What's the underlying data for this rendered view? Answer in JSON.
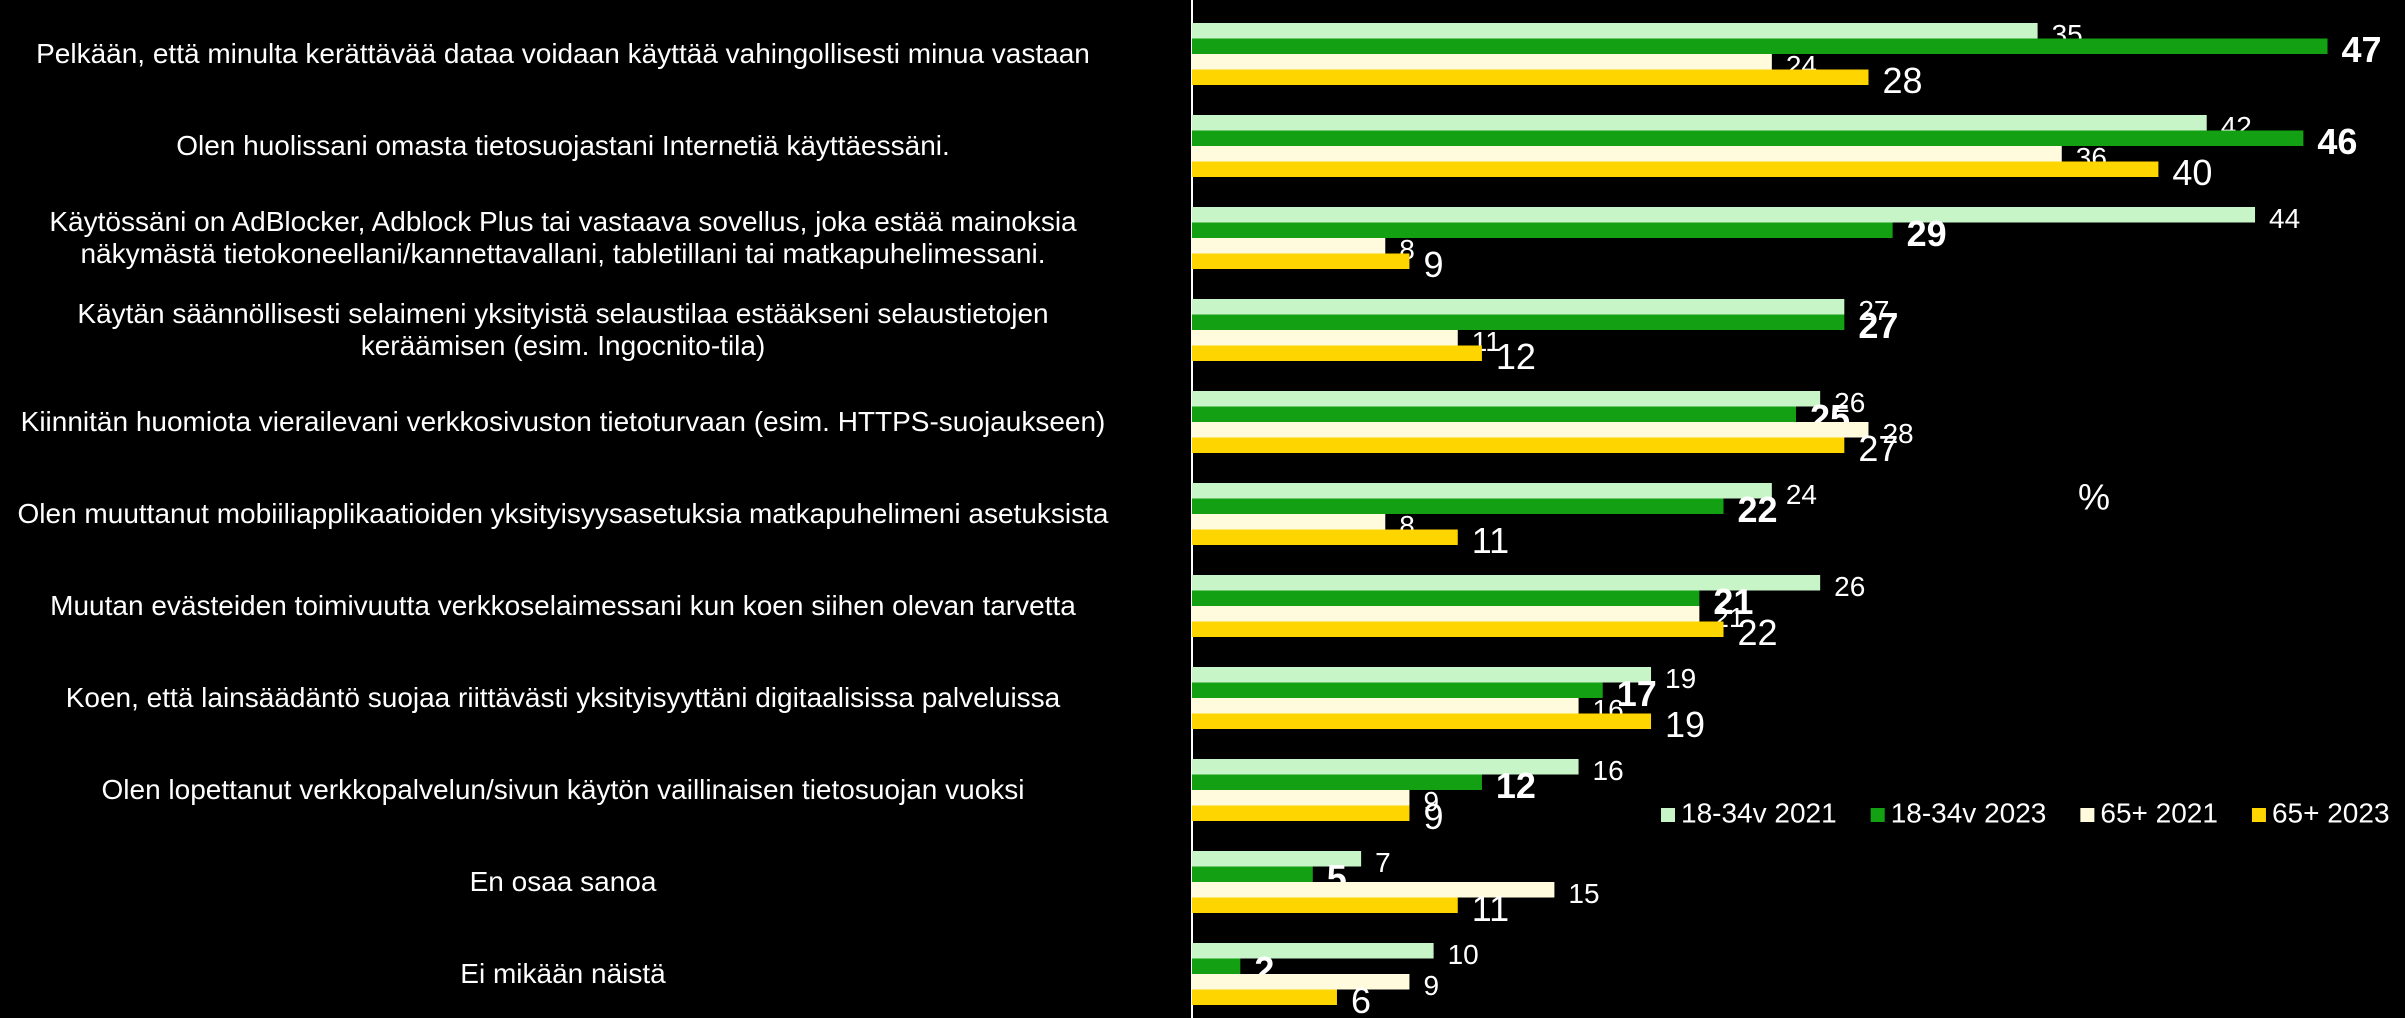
{
  "chart_data": {
    "type": "bar",
    "orientation": "horizontal",
    "categories": [
      "Pelkään, että minulta kerättävää dataa voidaan käyttää vahingollisesti minua vastaan",
      "Olen huolissani omasta tietosuojastani Internetiä käyttäessäni.",
      "Käytössäni on AdBlocker, Adblock Plus tai vastaava sovellus, joka estää mainoksia\nnäkymästä tietokoneellani/kannettavallani, tabletillani tai matkapuhelimessani.",
      "Käytän säännöllisesti selaimeni yksityistä selaustilaa estääkseni selaustietojen\nkeräämisen (esim. Ingocnito-tila)",
      "Kiinnitän huomiota vierailevani verkkosivuston tietoturvaan (esim. HTTPS-suojaukseen)",
      "Olen muuttanut mobiiliapplikaatioiden yksityisyysasetuksia matkapuhelimeni asetuksista",
      "Muutan evästeiden toimivuutta verkkoselaimessani kun koen siihen olevan tarvetta",
      "Koen, että lainsäädäntö suojaa riittävästi yksityisyyttäni digitaalisissa palveluissa",
      "Olen lopettanut verkkopalvelun/sivun käytön vaillinaisen tietosuojan vuoksi",
      "En osaa sanoa",
      "Ei mikään näistä"
    ],
    "series": [
      {
        "name": "18-34v 2021",
        "color": "#c8f5c8",
        "values": [
          35,
          42,
          44,
          27,
          26,
          24,
          26,
          19,
          16,
          7,
          10
        ]
      },
      {
        "name": "18-34v 2023",
        "color": "#13a013",
        "values": [
          47,
          46,
          29,
          27,
          25,
          22,
          21,
          17,
          12,
          5,
          2
        ]
      },
      {
        "name": "65+ 2021",
        "color": "#fffbdc",
        "values": [
          24,
          36,
          8,
          11,
          28,
          8,
          21,
          16,
          9,
          15,
          9
        ]
      },
      {
        "name": "65+ 2023",
        "color": "#ffd500",
        "values": [
          28,
          40,
          9,
          12,
          27,
          11,
          22,
          19,
          9,
          11,
          6
        ]
      }
    ],
    "xlim": [
      0,
      50
    ],
    "unit_label": "%",
    "legend": "lower right"
  }
}
